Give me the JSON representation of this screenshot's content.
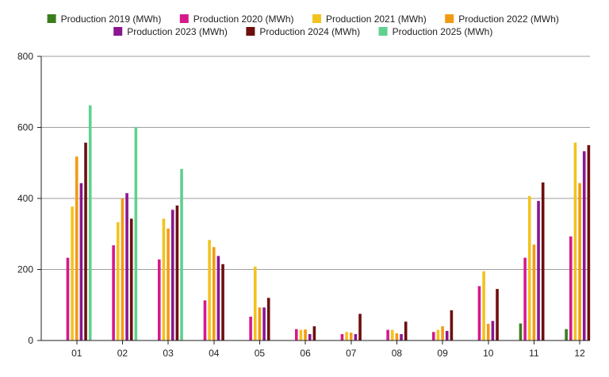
{
  "chart_data": {
    "type": "bar",
    "title": "",
    "xlabel": "",
    "ylabel": "",
    "ylim": [
      0,
      800
    ],
    "yticks": [
      0,
      200,
      400,
      600,
      800
    ],
    "grid": true,
    "legend_position": "top-center",
    "categories": [
      "01",
      "02",
      "03",
      "04",
      "05",
      "06",
      "07",
      "08",
      "09",
      "10",
      "11",
      "12"
    ],
    "series": [
      {
        "name": "Production 2019 (MWh)",
        "color": "#3a7d1e",
        "values": [
          null,
          null,
          null,
          null,
          null,
          null,
          null,
          null,
          null,
          null,
          48,
          32
        ]
      },
      {
        "name": "Production 2020 (MWh)",
        "color": "#d6198a",
        "values": [
          233,
          268,
          228,
          113,
          67,
          32,
          18,
          30,
          24,
          153,
          233,
          293
        ]
      },
      {
        "name": "Production 2021 (MWh)",
        "color": "#f2c31c",
        "values": [
          377,
          333,
          343,
          283,
          208,
          30,
          24,
          30,
          30,
          195,
          407,
          557
        ]
      },
      {
        "name": "Production 2022 (MWh)",
        "color": "#f39a14",
        "values": [
          518,
          400,
          315,
          263,
          93,
          31,
          22,
          20,
          40,
          47,
          270,
          443
        ]
      },
      {
        "name": "Production 2023 (MWh)",
        "color": "#8a1690",
        "values": [
          443,
          415,
          368,
          238,
          93,
          18,
          18,
          18,
          27,
          55,
          393,
          533
        ]
      },
      {
        "name": "Production 2024 (MWh)",
        "color": "#6d0f0f",
        "values": [
          557,
          343,
          380,
          215,
          120,
          40,
          75,
          53,
          85,
          145,
          445,
          550
        ]
      },
      {
        "name": "Production 2025 (MWh)",
        "color": "#5ed18f",
        "values": [
          662,
          600,
          483,
          null,
          null,
          null,
          null,
          null,
          null,
          null,
          null,
          null
        ]
      }
    ]
  }
}
